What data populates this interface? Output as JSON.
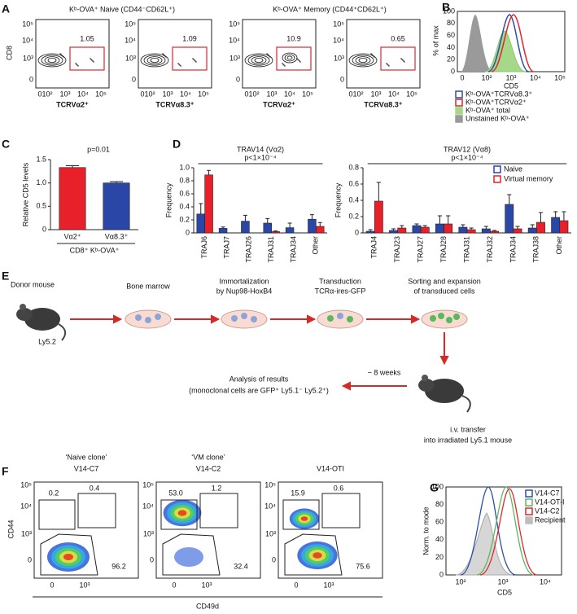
{
  "panels": {
    "A": {
      "label": "A",
      "titles": [
        "Kᵇ-OVA⁺ Naive (CD44⁻CD62L⁺)",
        "Kᵇ-OVA⁺ Memory (CD44⁺CD62L⁺)"
      ],
      "y_label": "CD8",
      "x_labels": [
        "TCRVα2⁺",
        "TCRVα8.3⁺",
        "TCRVα2⁺",
        "TCRVα8.3⁺"
      ],
      "gates": [
        "1.05",
        "1.09",
        "10.9",
        "0.65"
      ],
      "yticks": [
        "10⁵",
        "10⁴",
        "10³",
        "0"
      ],
      "xticks": [
        "0",
        "10²",
        "10³",
        "10⁴",
        "10⁵"
      ]
    },
    "B": {
      "label": "B",
      "y_label": "% of max",
      "x_label": "CD5",
      "yticks": [
        "100",
        "80",
        "60",
        "40",
        "20",
        "0"
      ],
      "xticks": [
        "0",
        "10²",
        "10³",
        "10⁴",
        "10⁵"
      ],
      "legend": [
        {
          "name": "Kᵇ-OVA⁺TCRVα8.3⁺",
          "color": "#2b4fa8"
        },
        {
          "name": "Kᵇ-OVA⁺TCRVα2⁺",
          "color": "#e0262d"
        },
        {
          "name": "Kᵇ-OVA⁺ total",
          "color": "#a6d88a"
        },
        {
          "name": "Unstained Kᵇ-OVA⁺",
          "color": "#9a9a9a"
        }
      ]
    },
    "C": {
      "label": "C"
    },
    "D": {
      "label": "D"
    },
    "E": {
      "label": "E",
      "steps": [
        "Donor mouse",
        "Ly5.2",
        "Bone marrow",
        "Immortalization",
        "by Nup98-HoxB4",
        "Transduction",
        "TCRα-ires-GFP",
        "Sorting and expansion",
        "of transduced cells",
        "~ 8 weeks",
        "Analysis of results",
        "(monoclonal cells are GFP⁺ Ly5.1⁻ Ly5.2⁺)",
        "i.v. transfer",
        "into irradiated Ly5.1 mouse"
      ]
    },
    "F": {
      "label": "F",
      "y_label": "CD44",
      "x_label": "CD49d",
      "yticks": [
        "10⁵",
        "10⁴",
        "10³",
        "0"
      ],
      "xticks": [
        "0",
        "10³"
      ],
      "clones": [
        {
          "lines": [
            "‘Naive clone’",
            "V14-C7"
          ],
          "gates": [
            "0.2",
            "0.4",
            "96.2"
          ]
        },
        {
          "lines": [
            "‘VM clone’",
            "V14-C2"
          ],
          "gates": [
            "53.0",
            "1.2",
            "32.4"
          ]
        },
        {
          "lines": [
            "V14-OTI"
          ],
          "gates": [
            "15.9",
            "0.6",
            "75.6"
          ]
        }
      ]
    },
    "G": {
      "label": "G",
      "y_label": "Norm. to mode",
      "x_label": "CD5",
      "yticks": [
        "100",
        "80",
        "60",
        "40",
        "20",
        "0"
      ],
      "xticks": [
        "10²",
        "10³",
        "10⁴"
      ],
      "legend": [
        {
          "name": "V14-C7",
          "color": "#2b4fa8"
        },
        {
          "name": "V14-OT-I",
          "color": "#5cb85c"
        },
        {
          "name": "V14-C2",
          "color": "#e0262d"
        },
        {
          "name": "Recipient",
          "color": "#bdbdbd"
        }
      ]
    }
  },
  "chart_data": [
    {
      "type": "bar",
      "y_label": "Relative CD5 levels",
      "x_label": "CD8⁺ Kᵇ-OVA⁺",
      "annotation": "p=0.01",
      "categories": [
        "Vα2⁺",
        "Vα8.3⁺"
      ],
      "values": [
        1.33,
        1.0
      ],
      "errors": [
        0.04,
        0.03
      ],
      "colors": [
        "#e8202a",
        "#2a47a8"
      ],
      "ylim": [
        0,
        1.5
      ],
      "yticks": [
        0,
        0.5,
        {
          "value": 1,
          "label": "1.0"
        },
        1.5
      ]
    },
    {
      "type": "bar",
      "title": "TRAV14 (Vα2)",
      "annotation": "p<1×10⁻⁴",
      "y_label": "Frequency",
      "categories": [
        "TRAJ6",
        "TRAJ7",
        "TRAJ26",
        "TRAJ31",
        "TRAJ34",
        "Other"
      ],
      "series": [
        {
          "color": "#2a47a8",
          "values": [
            0.29,
            0.07,
            0.18,
            0.15,
            0.08,
            0.21
          ],
          "errors": [
            0.16,
            0.02,
            0.09,
            0.07,
            0.07,
            0.07
          ]
        },
        {
          "color": "#e8202a",
          "values": [
            0.89,
            0,
            0,
            0.02,
            0,
            0.1
          ],
          "errors": [
            0.07,
            0,
            0,
            0.01,
            0,
            0.06
          ]
        }
      ],
      "ylim": [
        0,
        1
      ],
      "yticks": [
        0,
        0.2,
        0.4,
        0.6,
        0.8,
        {
          "value": 1,
          "label": "1.0"
        }
      ]
    },
    {
      "type": "bar",
      "title": "TRAV12 (Vα8)",
      "annotation": "p<1×10⁻⁴",
      "y_label": "Frequency",
      "categories": [
        "TRAJ4",
        "TRAJ23",
        "TRAJ27",
        "TRAJ28",
        "TRAJ31",
        "TRAJ32",
        "TRAJ34",
        "TRAJ38",
        "Other"
      ],
      "series": [
        {
          "name": "Naive",
          "color": "#2a47a8",
          "values": [
            0.02,
            0.03,
            0.09,
            0.11,
            0.07,
            0.05,
            0.35,
            0.06,
            0.19
          ],
          "errors": [
            0.02,
            0.02,
            0.02,
            0.1,
            0.03,
            0.03,
            0.12,
            0.04,
            0.07
          ]
        },
        {
          "name": "Virtual memory",
          "color": "#e8202a",
          "values": [
            0.39,
            0.06,
            0.07,
            0.11,
            0.04,
            0.02,
            0.05,
            0.13,
            0.15
          ],
          "errors": [
            0.23,
            0.03,
            0.02,
            0.1,
            0.02,
            0.01,
            0.03,
            0.12,
            0.11
          ]
        }
      ],
      "ylim": [
        0,
        0.8
      ],
      "yticks": [
        0,
        0.2,
        0.4,
        0.6,
        0.8
      ],
      "legend": "top-right"
    }
  ]
}
